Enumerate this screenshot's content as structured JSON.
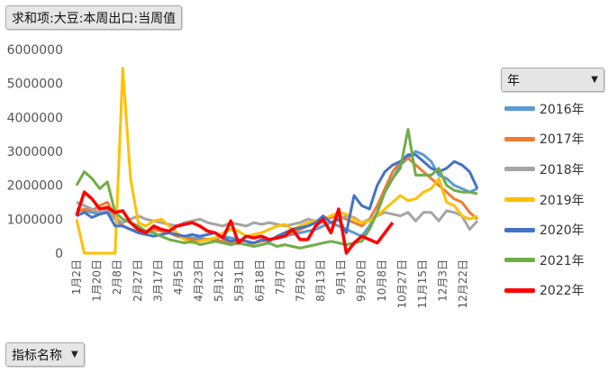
{
  "pivot": {
    "value_field": "求和项:大豆:本周出口:当周值",
    "filter_label": "年",
    "row_field": "指标名称"
  },
  "chart_data": {
    "type": "line",
    "ylim": [
      0,
      6000000
    ],
    "yticks": [
      0,
      1000000,
      2000000,
      3000000,
      4000000,
      5000000,
      6000000
    ],
    "x_tick_labels": [
      "1月2日",
      "1月20日",
      "2月8日",
      "2月27日",
      "3月17日",
      "4月5日",
      "4月23日",
      "5月12日",
      "5月31日",
      "6月18日",
      "7月7日",
      "7月26日",
      "8月13日",
      "9月1日",
      "9月20日",
      "10月8日",
      "10月27日",
      "11月15日",
      "12月3日",
      "12月22日"
    ],
    "n_points": 53,
    "series": [
      {
        "name": "2016年",
        "color": "#5b9bd5",
        "values": [
          1300000,
          1250000,
          1200000,
          1150000,
          1300000,
          1000000,
          800000,
          700000,
          600000,
          650000,
          700000,
          650000,
          600000,
          550000,
          500000,
          450000,
          450000,
          400000,
          450000,
          500000,
          450000,
          400000,
          350000,
          300000,
          350000,
          400000,
          450000,
          500000,
          550000,
          600000,
          650000,
          700000,
          800000,
          900000,
          800000,
          700000,
          600000,
          500000,
          800000,
          1200000,
          1800000,
          2200000,
          2600000,
          2800000,
          3000000,
          2900000,
          2700000,
          2300000,
          2200000,
          2000000,
          1900000,
          1800000,
          1900000
        ]
      },
      {
        "name": "2017年",
        "color": "#ed7d31",
        "values": [
          1200000,
          1300000,
          1250000,
          1400000,
          1500000,
          1100000,
          800000,
          700000,
          650000,
          600000,
          700000,
          650000,
          600000,
          500000,
          450000,
          400000,
          380000,
          420000,
          400000,
          350000,
          330000,
          300000,
          250000,
          300000,
          350000,
          400000,
          450000,
          500000,
          600000,
          700000,
          800000,
          900000,
          1000000,
          1050000,
          1100000,
          1000000,
          900000,
          800000,
          1000000,
          1400000,
          1900000,
          2400000,
          2700000,
          2800000,
          2600000,
          2400000,
          2200000,
          2000000,
          1800000,
          1600000,
          1500000,
          1200000,
          1000000
        ]
      },
      {
        "name": "2018年",
        "color": "#a5a5a5",
        "values": [
          1500000,
          1400000,
          1300000,
          1200000,
          1250000,
          1000000,
          900000,
          1000000,
          1100000,
          1000000,
          950000,
          900000,
          850000,
          800000,
          900000,
          950000,
          1000000,
          900000,
          850000,
          800000,
          900000,
          850000,
          800000,
          900000,
          850000,
          900000,
          850000,
          800000,
          850000,
          900000,
          1000000,
          950000,
          900000,
          900000,
          1000000,
          1100000,
          1050000,
          900000,
          1000000,
          1100000,
          1200000,
          1150000,
          1100000,
          1200000,
          950000,
          1200000,
          1200000,
          950000,
          1250000,
          1200000,
          1100000,
          700000,
          950000
        ]
      },
      {
        "name": "2019年",
        "color": "#ffc000",
        "values": [
          1000000,
          0,
          0,
          0,
          0,
          0,
          5450000,
          2200000,
          900000,
          800000,
          950000,
          1000000,
          800000,
          600000,
          400000,
          300000,
          350000,
          400000,
          450000,
          600000,
          700000,
          650000,
          500000,
          550000,
          600000,
          700000,
          800000,
          850000,
          700000,
          800000,
          900000,
          950000,
          1000000,
          1100000,
          1200000,
          1150000,
          1000000,
          900000,
          950000,
          1100000,
          1300000,
          1500000,
          1700000,
          1550000,
          1600000,
          1800000,
          1900000,
          2200000,
          1500000,
          1400000,
          1100000,
          1000000,
          1100000
        ]
      },
      {
        "name": "2020年",
        "color": "#4472c4",
        "values": [
          1100000,
          1200000,
          1050000,
          1150000,
          1200000,
          800000,
          800000,
          700000,
          600000,
          550000,
          500000,
          550000,
          600000,
          550000,
          500000,
          550000,
          500000,
          550000,
          600000,
          450000,
          350000,
          400000,
          350000,
          300000,
          400000,
          350000,
          500000,
          600000,
          700000,
          750000,
          800000,
          900000,
          1100000,
          900000,
          1000000,
          600000,
          1700000,
          1400000,
          1300000,
          2000000,
          2400000,
          2600000,
          2700000,
          2900000,
          2900000,
          2700000,
          2500000,
          2400000,
          2500000,
          2700000,
          2600000,
          2400000,
          1900000
        ]
      },
      {
        "name": "2021年",
        "color": "#70ad47",
        "values": [
          2000000,
          2400000,
          2200000,
          1900000,
          2100000,
          1200000,
          1000000,
          900000,
          800000,
          650000,
          600000,
          500000,
          400000,
          350000,
          300000,
          350000,
          250000,
          300000,
          350000,
          300000,
          250000,
          300000,
          250000,
          200000,
          250000,
          300000,
          200000,
          250000,
          200000,
          150000,
          200000,
          250000,
          300000,
          350000,
          300000,
          250000,
          300000,
          350000,
          700000,
          1200000,
          1800000,
          2200000,
          2500000,
          3650000,
          2300000,
          2300000,
          2300000,
          2500000,
          2000000,
          1850000,
          1800000,
          1800000,
          1750000
        ]
      },
      {
        "name": "2022年",
        "color": "#ff0000",
        "values": [
          1100000,
          1800000,
          1600000,
          1300000,
          1350000,
          1200000,
          1250000,
          900000,
          700000,
          600000,
          800000,
          700000,
          650000,
          800000,
          850000,
          900000,
          800000,
          650000,
          600000,
          450000,
          950000,
          300000,
          500000,
          450000,
          500000,
          400000,
          450000,
          500000,
          700000,
          400000,
          400000,
          800000,
          1000000,
          600000,
          1300000,
          0,
          300000,
          500000,
          400000,
          300000,
          600000,
          900000
        ]
      }
    ]
  }
}
